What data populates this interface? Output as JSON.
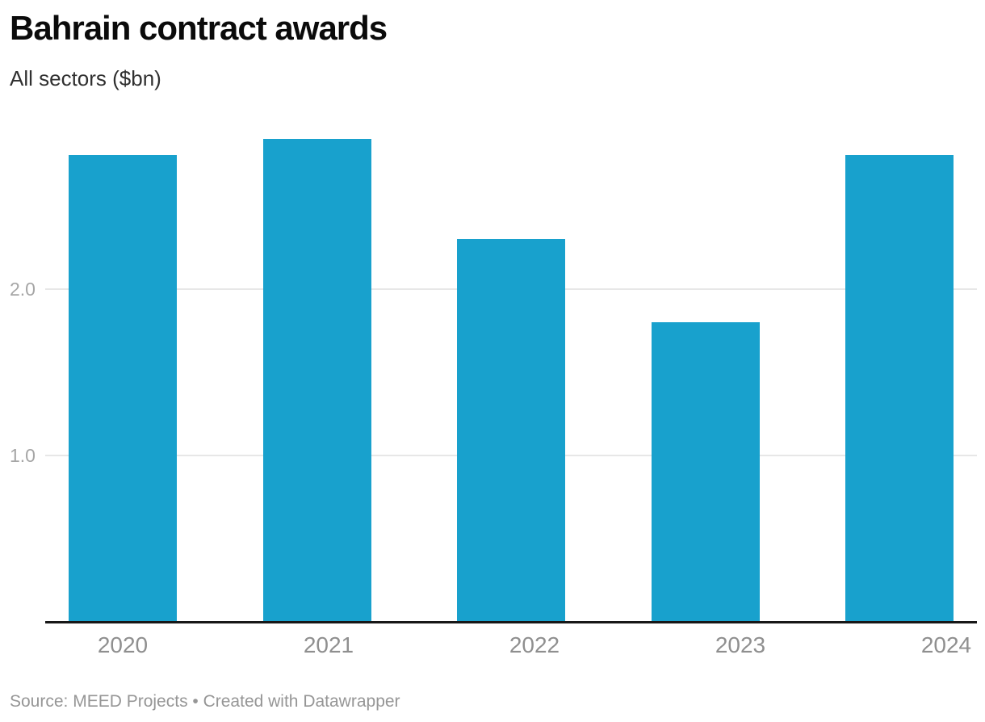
{
  "header": {
    "title": "Bahrain contract awards",
    "subtitle": "All sectors ($bn)"
  },
  "footer": {
    "text": "Source: MEED Projects • Created with Datawrapper"
  },
  "chart_data": {
    "type": "bar",
    "categories": [
      "2020",
      "2021",
      "2022",
      "2023",
      "2024"
    ],
    "values": [
      2.8,
      2.9,
      2.3,
      1.8,
      2.8
    ],
    "title": "Bahrain contract awards",
    "subtitle": "All sectors ($bn)",
    "xlabel": "",
    "ylabel": "",
    "ylim": [
      0,
      3.0
    ],
    "yticks": [
      1.0,
      2.0
    ],
    "ytick_labels": [
      "1.0",
      "2.0"
    ],
    "grid": true,
    "legend": "none",
    "source": "Source: MEED Projects • Created with Datawrapper"
  },
  "colors": {
    "bar": "#18a1cd",
    "grid": "#e7e7e7",
    "axis": "#171717",
    "title": "#0b0b0b",
    "subtitle": "#303030",
    "ytick": "#a6a6a6",
    "xlabel": "#8f8f8f",
    "footer": "#969696"
  }
}
